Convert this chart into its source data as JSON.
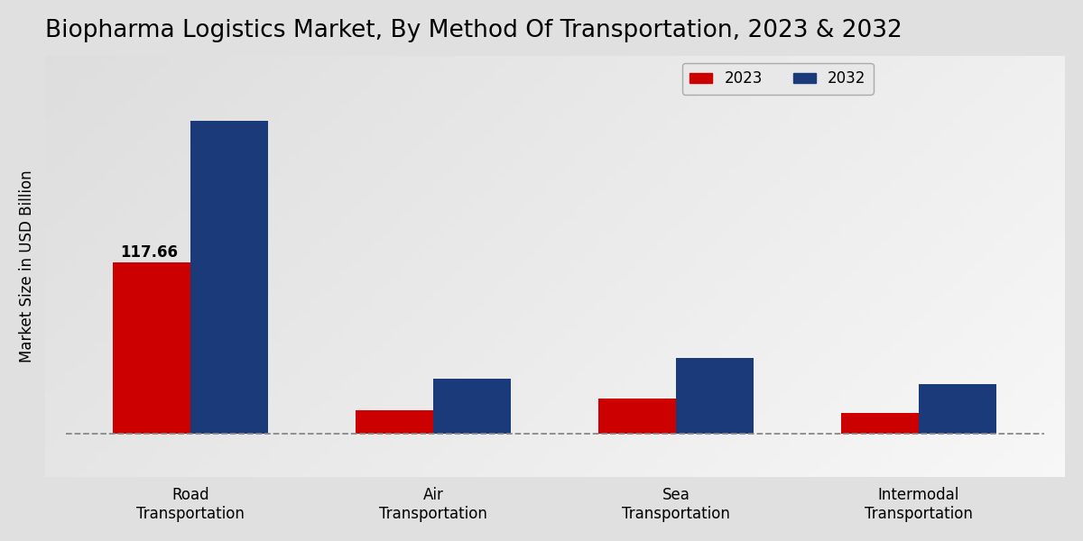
{
  "title": "Biopharma Logistics Market, By Method Of Transportation, 2023 & 2032",
  "ylabel": "Market Size in USD Billion",
  "categories": [
    "Road\nTransportation",
    "Air\nTransportation",
    "Sea\nTransportation",
    "Intermodal\nTransportation"
  ],
  "values_2023": [
    117.66,
    16.0,
    24.0,
    14.0
  ],
  "values_2032": [
    215.0,
    38.0,
    52.0,
    34.0
  ],
  "color_2023": "#cc0000",
  "color_2032": "#1a3a7a",
  "annotation_value": "117.66",
  "legend_2023": "2023",
  "legend_2032": "2032",
  "bar_width": 0.32,
  "title_fontsize": 19,
  "label_fontsize": 12,
  "tick_fontsize": 12,
  "legend_fontsize": 12,
  "ylim_max": 260,
  "dashed_line_y": 0
}
